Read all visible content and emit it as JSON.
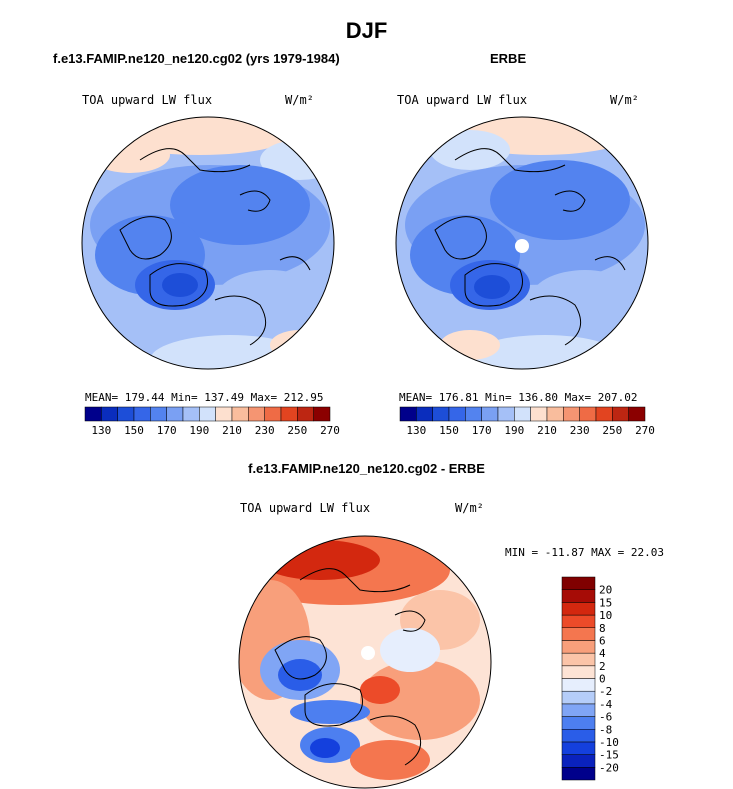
{
  "title": "DJF",
  "panels": [
    {
      "heading": "f.e13.FAMIP.ne120_ne120.cg02 (yrs 1979-1984)",
      "variable": "TOA upward LW flux",
      "units": "W/m²",
      "stats": {
        "mean_label": "MEAN=",
        "mean": "179.44",
        "min_label": "Min=",
        "min": "137.49",
        "max_label": "Max=",
        "max": "212.95"
      }
    },
    {
      "heading": "ERBE",
      "variable": "TOA upward LW flux",
      "units": "W/m²",
      "stats": {
        "mean_label": "MEAN=",
        "mean": "176.81",
        "min_label": "Min=",
        "min": "136.80",
        "max_label": "Max=",
        "max": "207.02"
      }
    },
    {
      "heading": "f.e13.FAMIP.ne120_ne120.cg02 - ERBE",
      "variable": "TOA upward LW flux",
      "units": "W/m²",
      "stats": {
        "min_label": "MIN =",
        "min": "-11.87",
        "max_label": "MAX =",
        "max": "22.03"
      }
    }
  ],
  "colorbar_abs": {
    "colors": [
      "#00008b",
      "#0a2dbd",
      "#1d4ed8",
      "#3566e8",
      "#5383ef",
      "#7aa0f3",
      "#a5c0f7",
      "#d2e2fb",
      "#fde0cf",
      "#f9bd9d",
      "#f59572",
      "#ef6b45",
      "#e24420",
      "#bd2612",
      "#8b0000"
    ],
    "tick_labels": [
      "130",
      "150",
      "170",
      "190",
      "210",
      "230",
      "250",
      "270"
    ]
  },
  "colorbar_diff": {
    "colors": [
      "#00008b",
      "#0a22bd",
      "#1440dd",
      "#2a5de8",
      "#4d7ff0",
      "#80a5f5",
      "#b5cdf9",
      "#e6eefd",
      "#fde3d5",
      "#fbc4a8",
      "#f89f7b",
      "#f4764f",
      "#ec4b29",
      "#d3280f",
      "#a60c06",
      "#800000"
    ],
    "tick_labels": [
      "20",
      "15",
      "10",
      "8",
      "6",
      "4",
      "2",
      "0",
      "-2",
      "-4",
      "-6",
      "-8",
      "-10",
      "-15",
      "-20"
    ]
  }
}
